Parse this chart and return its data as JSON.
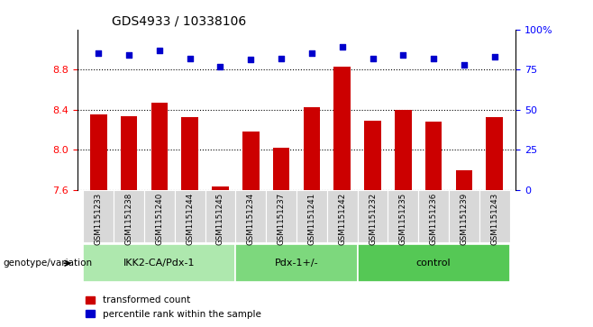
{
  "title": "GDS4933 / 10338106",
  "samples": [
    "GSM1151233",
    "GSM1151238",
    "GSM1151240",
    "GSM1151244",
    "GSM1151245",
    "GSM1151234",
    "GSM1151237",
    "GSM1151241",
    "GSM1151242",
    "GSM1151232",
    "GSM1151235",
    "GSM1151236",
    "GSM1151239",
    "GSM1151243"
  ],
  "groups": [
    {
      "label": "IKK2-CA/Pdx-1",
      "count": 5,
      "color": "#aee8ae"
    },
    {
      "label": "Pdx-1+/-",
      "count": 4,
      "color": "#7dd87d"
    },
    {
      "label": "control",
      "count": 5,
      "color": "#55c855"
    }
  ],
  "bar_values": [
    8.35,
    8.33,
    8.47,
    8.32,
    7.63,
    8.18,
    8.02,
    8.42,
    8.83,
    8.29,
    8.4,
    8.28,
    7.79,
    8.32
  ],
  "dot_values": [
    85,
    84,
    87,
    82,
    77,
    81,
    82,
    85,
    89,
    82,
    84,
    82,
    78,
    83
  ],
  "ylim_left": [
    7.6,
    9.2
  ],
  "ylim_right": [
    0,
    100
  ],
  "bar_color": "#cc0000",
  "dot_color": "#0000cc",
  "grid_values": [
    7.6,
    8.0,
    8.4,
    8.8
  ],
  "right_ticks": [
    0,
    25,
    50,
    75,
    100
  ],
  "right_tick_labels": [
    "0",
    "25",
    "50",
    "75",
    "100%"
  ],
  "tick_area_color": "#d8d8d8",
  "legend_label_red": "transformed count",
  "legend_label_blue": "percentile rank within the sample",
  "genotype_label": "genotype/variation"
}
